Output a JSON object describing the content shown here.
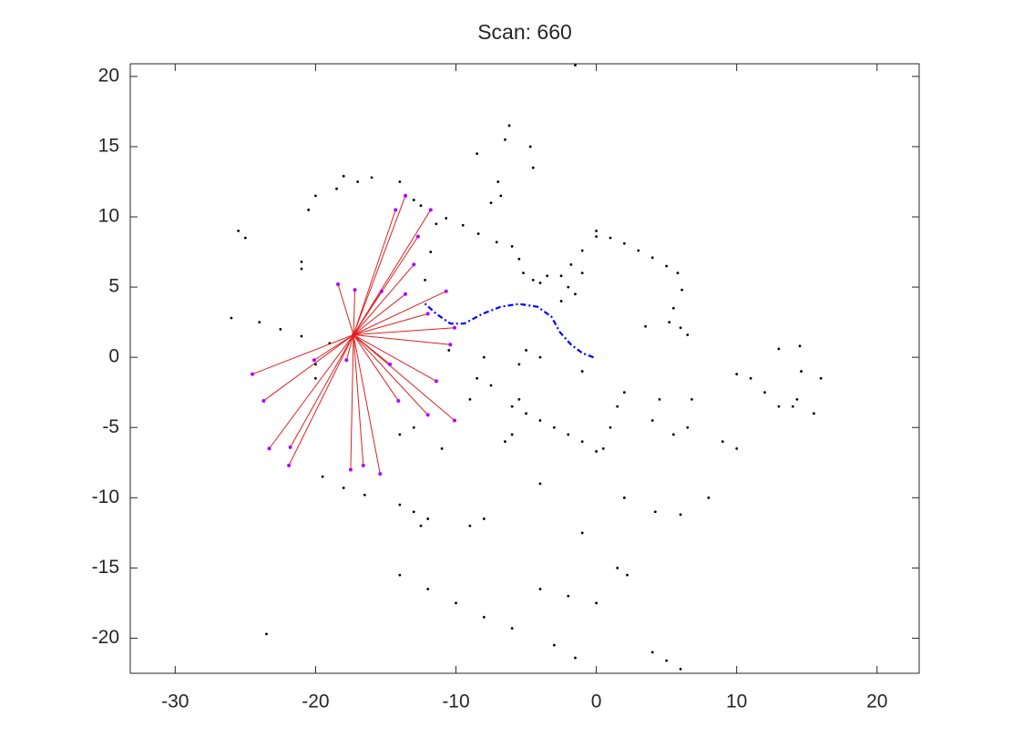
{
  "chart_data": {
    "type": "scatter",
    "title": "Scan: 660",
    "xlim": [
      -33.2,
      23
    ],
    "ylim": [
      -22.5,
      20.9
    ],
    "xticks": [
      -30,
      -20,
      -10,
      0,
      10,
      20
    ],
    "yticks": [
      -20,
      -15,
      -10,
      -5,
      0,
      5,
      10,
      15,
      20
    ],
    "grid": false,
    "series": [
      {
        "style": "dots",
        "color": "#000000",
        "x": [
          -14,
          -16,
          -18,
          -17,
          -18.5,
          -20,
          -20.5,
          -13,
          -12.5,
          -11.4,
          -11.8,
          -12.2,
          -10.7,
          -9.5,
          -8.4,
          -7.1,
          -6,
          -5.5,
          -5.2,
          -4.5,
          -4,
          -3.5,
          -2.5,
          -1.8,
          -1,
          0,
          0,
          1,
          2,
          3,
          4,
          5,
          5.8,
          6.1,
          5.5,
          6,
          6.5,
          5.2,
          3.5,
          -2,
          -1,
          -2.5,
          -1.5,
          -25.5,
          -25,
          -21,
          -21,
          -26,
          -24,
          -22.5,
          -21,
          -19,
          -20,
          -20,
          -6,
          -5,
          -4,
          -3,
          -2,
          -1,
          0,
          0.5,
          1,
          1.5,
          2,
          -5.5,
          -6,
          -6.5,
          13,
          14.5,
          14.6,
          14.3,
          14,
          10,
          11,
          12,
          13,
          15.5,
          16,
          4.5,
          6.8,
          6.5,
          5.5,
          4,
          9,
          10,
          8,
          6,
          4.2,
          2,
          -1,
          1.5,
          2.2,
          -14,
          -12,
          -10,
          -8,
          -6,
          -4,
          -2,
          0,
          -14,
          -13,
          -12.5,
          -12,
          -8,
          -9,
          -4,
          -19.5,
          -18,
          -16.5,
          -23.5,
          -3,
          -1.5,
          4,
          5,
          6,
          -1.5,
          -6.2,
          -6.5,
          -8.5,
          -4.7,
          -4.5,
          -7,
          -7.5,
          -6.8,
          -1,
          -5.5,
          -5,
          -4,
          -7.5,
          -8.5,
          -10.5,
          -8,
          -9,
          -11,
          -13,
          -14
        ],
        "y": [
          12.5,
          12.8,
          12.9,
          12.5,
          12,
          11.5,
          10.5,
          11.2,
          10.8,
          9.5,
          7.5,
          5.5,
          9.9,
          9.4,
          8.8,
          8.2,
          7.9,
          7,
          6,
          5.5,
          5.3,
          5.8,
          5.8,
          6.6,
          7.6,
          8.6,
          9,
          8.5,
          8.1,
          7.6,
          7.1,
          6.5,
          6,
          4.8,
          3.5,
          2.1,
          1.6,
          2.5,
          2.2,
          5,
          6,
          4,
          4.5,
          9,
          8.5,
          6.8,
          6.3,
          2.8,
          2.5,
          2,
          1.5,
          1,
          -0.5,
          -1.5,
          -3.5,
          -4,
          -4.5,
          -5,
          -5.5,
          -6,
          -6.7,
          -6.5,
          -5,
          -3.5,
          -2.5,
          -3,
          -5.5,
          -6,
          0.6,
          0.8,
          -1,
          -3,
          -3.5,
          -1.2,
          -1.5,
          -2.5,
          -3.5,
          -4,
          -1.5,
          -3,
          -3,
          -5,
          -5.5,
          -4.5,
          -6,
          -6.5,
          -10,
          -11.2,
          -11,
          -10,
          -12.5,
          -15,
          -15.5,
          -15.5,
          -16.5,
          -17.5,
          -18.5,
          -19.3,
          -16.5,
          -17,
          -17.5,
          -10.5,
          -11,
          -12,
          -11.5,
          -11.5,
          -12,
          -9,
          -8.5,
          -9.3,
          -9.8,
          -19.7,
          -20.5,
          -21.4,
          -21,
          -21.6,
          -22.2,
          20.8,
          16.5,
          15.5,
          14.5,
          15,
          13.5,
          12.5,
          11,
          11.5,
          -1,
          -0.5,
          0.5,
          0,
          -2,
          -1.5,
          0.5,
          0,
          -3,
          -6.5,
          -5,
          -5.5
        ]
      },
      {
        "style": "dashdot",
        "color": "#0000ff",
        "x": [
          -0.2,
          -1.0,
          -1.8,
          -2.6,
          -3.2,
          -4.2,
          -5.5,
          -6.8,
          -8.1,
          -9.4,
          -10.4,
          -11.4,
          -12.3
        ],
        "y": [
          0,
          0.3,
          0.9,
          1.8,
          2.9,
          3.6,
          3.8,
          3.6,
          3.1,
          2.4,
          2.4,
          3.1,
          3.9
        ]
      },
      {
        "style": "rays",
        "color": "#e02020",
        "end_color": "#b000ff",
        "from": [
          -17.3,
          1.6
        ],
        "x": [
          -24.5,
          -23.7,
          -23.3,
          -21.9,
          -21.8,
          -17.5,
          -16.6,
          -15.4,
          -14.1,
          -12.0,
          -10.1,
          -11.4,
          -10.4,
          -10.1,
          -10.7,
          -12.0,
          -13.6,
          -15.3,
          -17.2,
          -18.4,
          -14.3,
          -13.6,
          -11.8,
          -12.7,
          -13.0,
          -17.8,
          -20.1,
          -14.7
        ],
        "y": [
          -1.2,
          -3.1,
          -6.5,
          -7.7,
          -6.4,
          -8.0,
          -7.7,
          -8.3,
          -3.1,
          -4.1,
          -4.5,
          -1.7,
          0.9,
          2.1,
          4.7,
          3.1,
          4.5,
          4.7,
          4.8,
          5.2,
          10.5,
          11.5,
          10.5,
          8.6,
          6.6,
          -0.2,
          -0.2,
          -0.5
        ]
      }
    ]
  }
}
